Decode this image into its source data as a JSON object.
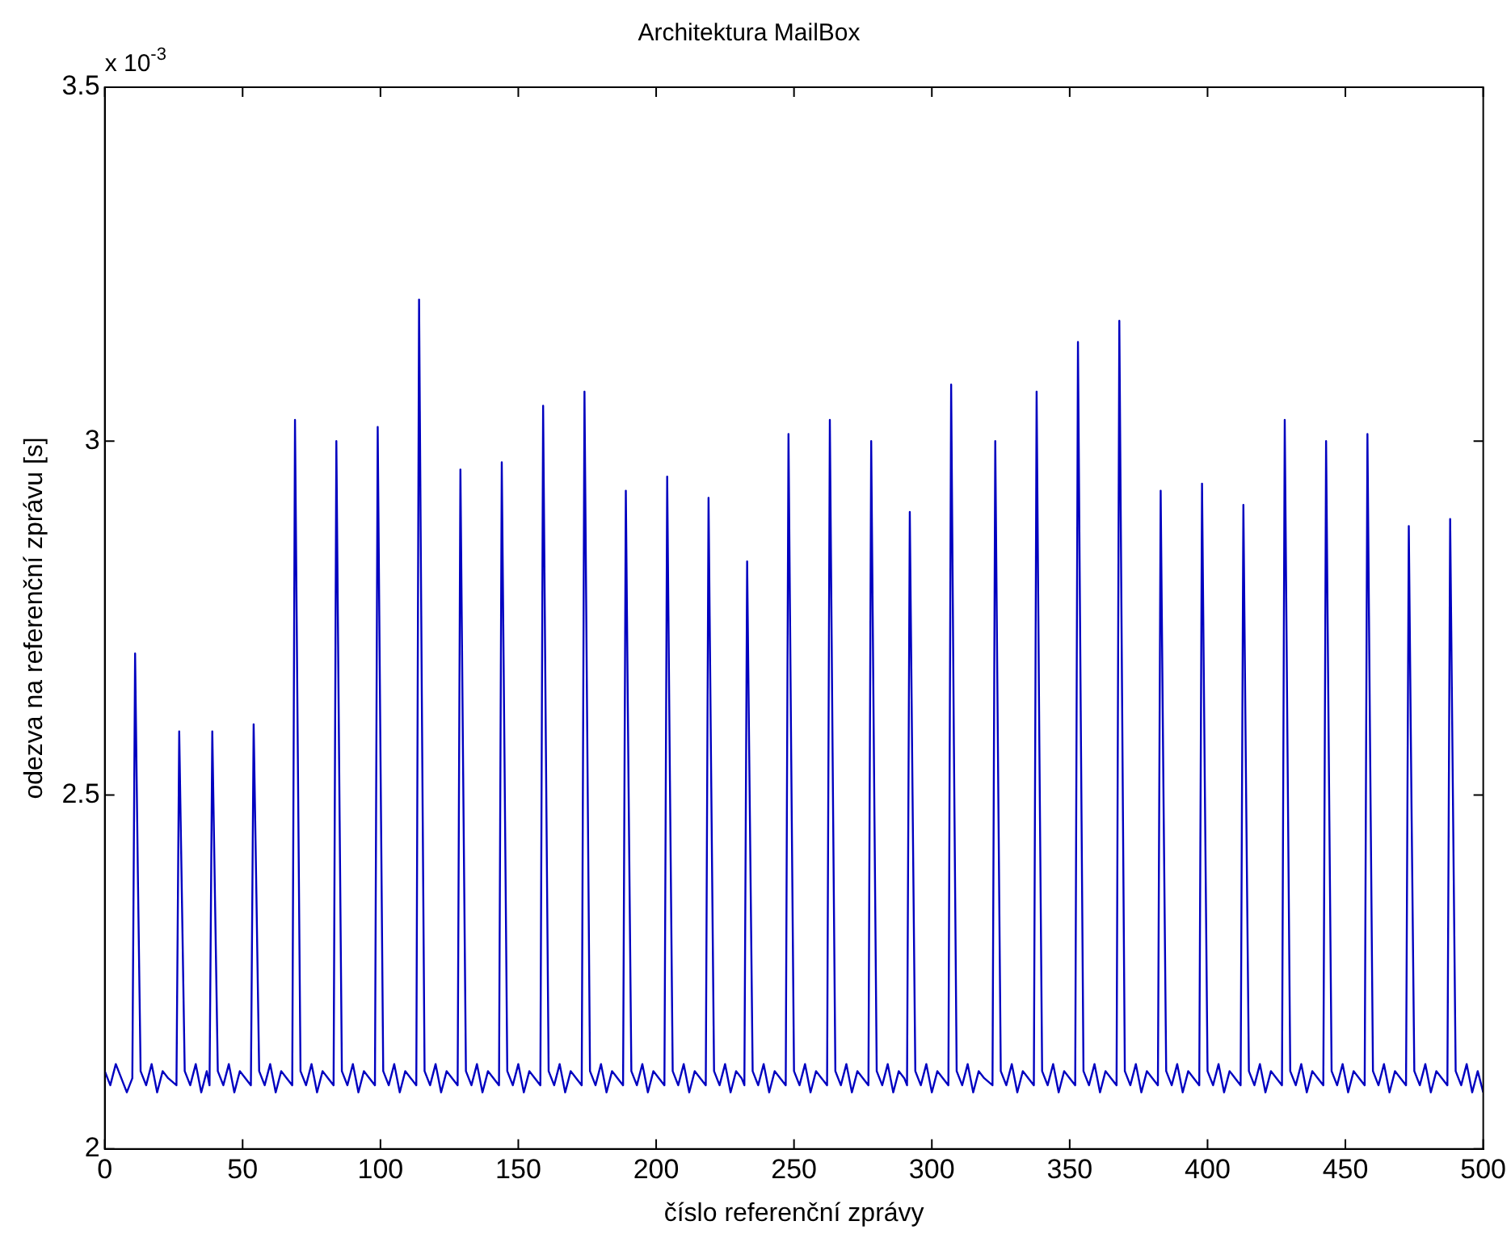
{
  "chart_data": {
    "type": "line",
    "title": "Architektura MailBox",
    "xlabel": "číslo referenční zprávy",
    "ylabel": "odezva na referenční zprávu [s]",
    "annotations": [
      "x 10$^{-3}$"
    ],
    "xlim": [
      0,
      500
    ],
    "xticks": [
      0,
      50,
      100,
      150,
      200,
      250,
      300,
      350,
      400,
      450,
      500
    ],
    "ylim": [
      2,
      3.5
    ],
    "yticks": [
      2,
      2.5,
      3,
      3.5
    ],
    "grid": false,
    "legend": false,
    "marker": "none",
    "line_style": "solid",
    "series": [
      {
        "color": "#0000c0",
        "x": [
          0,
          2,
          4,
          6,
          8,
          10,
          11,
          12,
          13,
          15,
          17,
          19,
          21,
          23,
          26,
          27,
          28,
          29,
          31,
          33,
          35,
          37,
          38,
          39,
          40,
          41,
          43,
          45,
          47,
          49,
          51,
          53,
          54,
          55,
          56,
          58,
          60,
          62,
          64,
          66,
          68,
          69,
          70,
          71,
          73,
          75,
          77,
          79,
          81,
          83,
          84,
          85,
          86,
          88,
          90,
          92,
          94,
          96,
          98,
          99,
          100,
          101,
          103,
          105,
          107,
          109,
          111,
          113,
          114,
          115,
          116,
          118,
          120,
          122,
          124,
          126,
          128,
          129,
          130,
          131,
          133,
          135,
          137,
          139,
          141,
          143,
          144,
          145,
          146,
          148,
          150,
          152,
          154,
          156,
          158,
          159,
          160,
          161,
          163,
          165,
          167,
          169,
          171,
          173,
          174,
          175,
          176,
          178,
          180,
          182,
          184,
          186,
          188,
          189,
          190,
          191,
          193,
          195,
          197,
          199,
          201,
          203,
          204,
          205,
          206,
          208,
          210,
          212,
          214,
          216,
          218,
          219,
          220,
          221,
          223,
          225,
          227,
          229,
          231,
          232,
          233,
          234,
          235,
          237,
          239,
          241,
          243,
          245,
          247,
          248,
          249,
          250,
          252,
          254,
          256,
          258,
          260,
          262,
          263,
          264,
          265,
          267,
          269,
          271,
          273,
          275,
          277,
          278,
          279,
          280,
          282,
          284,
          286,
          288,
          290,
          291,
          292,
          293,
          294,
          296,
          298,
          300,
          302,
          304,
          306,
          307,
          308,
          309,
          311,
          313,
          315,
          317,
          319,
          322,
          323,
          324,
          325,
          327,
          329,
          331,
          333,
          335,
          337,
          338,
          339,
          340,
          342,
          344,
          346,
          348,
          350,
          352,
          353,
          354,
          355,
          357,
          359,
          361,
          363,
          365,
          367,
          368,
          369,
          370,
          372,
          374,
          376,
          378,
          380,
          382,
          383,
          384,
          385,
          387,
          389,
          391,
          393,
          395,
          397,
          398,
          399,
          400,
          402,
          404,
          406,
          408,
          410,
          412,
          413,
          414,
          415,
          417,
          419,
          421,
          423,
          425,
          427,
          428,
          429,
          430,
          432,
          434,
          436,
          438,
          440,
          442,
          443,
          444,
          445,
          447,
          449,
          451,
          453,
          455,
          457,
          458,
          459,
          460,
          462,
          464,
          466,
          468,
          470,
          472,
          473,
          474,
          475,
          477,
          479,
          481,
          483,
          485,
          487,
          488,
          489,
          490,
          492,
          494,
          496,
          498,
          500
        ],
        "values": [
          2.11,
          2.09,
          2.12,
          2.1,
          2.08,
          2.1,
          2.7,
          2.39,
          2.11,
          2.09,
          2.12,
          2.08,
          2.11,
          2.1,
          2.09,
          2.59,
          2.35,
          2.11,
          2.09,
          2.12,
          2.08,
          2.11,
          2.09,
          2.59,
          2.35,
          2.11,
          2.09,
          2.12,
          2.08,
          2.11,
          2.1,
          2.09,
          2.6,
          2.36,
          2.11,
          2.09,
          2.12,
          2.08,
          2.11,
          2.1,
          2.09,
          3.03,
          2.57,
          2.11,
          2.09,
          2.12,
          2.08,
          2.11,
          2.1,
          2.09,
          3.0,
          2.55,
          2.11,
          2.09,
          2.12,
          2.08,
          2.11,
          2.1,
          2.09,
          3.02,
          2.56,
          2.11,
          2.09,
          2.12,
          2.08,
          2.11,
          2.1,
          2.09,
          3.2,
          2.64,
          2.11,
          2.09,
          2.12,
          2.08,
          2.11,
          2.1,
          2.09,
          2.96,
          2.53,
          2.11,
          2.09,
          2.12,
          2.08,
          2.11,
          2.1,
          2.09,
          2.97,
          2.55,
          2.11,
          2.09,
          2.12,
          2.08,
          2.11,
          2.1,
          2.09,
          3.05,
          2.57,
          2.11,
          2.09,
          2.12,
          2.08,
          2.11,
          2.1,
          2.09,
          3.07,
          2.59,
          2.11,
          2.09,
          2.12,
          2.08,
          2.11,
          2.1,
          2.09,
          2.93,
          2.51,
          2.11,
          2.09,
          2.12,
          2.08,
          2.11,
          2.1,
          2.09,
          2.95,
          2.52,
          2.11,
          2.09,
          2.12,
          2.08,
          2.11,
          2.1,
          2.09,
          2.92,
          2.51,
          2.11,
          2.09,
          2.12,
          2.08,
          2.11,
          2.1,
          2.09,
          2.83,
          2.47,
          2.11,
          2.09,
          2.12,
          2.08,
          2.11,
          2.1,
          2.09,
          3.01,
          2.55,
          2.11,
          2.09,
          2.12,
          2.08,
          2.11,
          2.1,
          2.09,
          3.03,
          2.56,
          2.11,
          2.09,
          2.12,
          2.08,
          2.11,
          2.1,
          2.09,
          3.0,
          2.55,
          2.11,
          2.09,
          2.12,
          2.08,
          2.11,
          2.1,
          2.09,
          2.9,
          2.5,
          2.11,
          2.09,
          2.12,
          2.08,
          2.11,
          2.1,
          2.09,
          3.08,
          2.57,
          2.11,
          2.09,
          2.12,
          2.08,
          2.11,
          2.1,
          2.09,
          3.0,
          2.55,
          2.11,
          2.09,
          2.12,
          2.08,
          2.11,
          2.1,
          2.09,
          3.07,
          2.57,
          2.11,
          2.09,
          2.12,
          2.08,
          2.11,
          2.1,
          2.09,
          3.14,
          2.62,
          2.11,
          2.09,
          2.12,
          2.08,
          2.11,
          2.1,
          2.09,
          3.17,
          2.64,
          2.11,
          2.09,
          2.12,
          2.08,
          2.11,
          2.1,
          2.09,
          2.93,
          2.51,
          2.11,
          2.09,
          2.12,
          2.08,
          2.11,
          2.1,
          2.09,
          2.94,
          2.52,
          2.11,
          2.09,
          2.12,
          2.08,
          2.11,
          2.1,
          2.09,
          2.91,
          2.5,
          2.11,
          2.09,
          2.12,
          2.08,
          2.11,
          2.1,
          2.09,
          3.03,
          2.57,
          2.11,
          2.09,
          2.12,
          2.08,
          2.11,
          2.1,
          2.09,
          3.0,
          2.55,
          2.11,
          2.09,
          2.12,
          2.08,
          2.11,
          2.1,
          2.09,
          3.01,
          2.55,
          2.11,
          2.09,
          2.12,
          2.08,
          2.11,
          2.1,
          2.09,
          2.88,
          2.48,
          2.11,
          2.09,
          2.12,
          2.08,
          2.11,
          2.1,
          2.09,
          2.89,
          2.5,
          2.11,
          2.09,
          2.12,
          2.08,
          2.11,
          2.08
        ]
      }
    ]
  }
}
